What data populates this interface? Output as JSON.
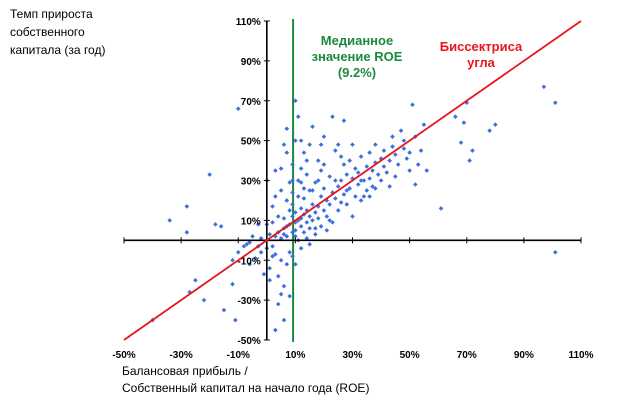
{
  "chart_data": {
    "type": "scatter",
    "ylabel_lines": [
      "Темп прироста",
      "собственного",
      "капитала (за год)"
    ],
    "xlabel_lines": [
      "Балансовая прибыль /",
      "Собственный капитал на начало года (ROE)"
    ],
    "xlim": [
      -50,
      110
    ],
    "ylim": [
      -50,
      110
    ],
    "x_ticks": [
      "-50%",
      "-30%",
      "-10%",
      "10%",
      "30%",
      "50%",
      "70%",
      "90%",
      "110%"
    ],
    "y_ticks": [
      "110%",
      "90%",
      "70%",
      "50%",
      "30%",
      "10%",
      "-10%",
      "-30%",
      "-50%"
    ],
    "x_tick_values": [
      -50,
      -30,
      -10,
      10,
      30,
      50,
      70,
      90,
      110
    ],
    "y_tick_values": [
      110,
      90,
      70,
      50,
      30,
      10,
      -10,
      -30,
      -50
    ],
    "grid": false,
    "median_roe": 9.2,
    "median_label_lines": [
      "Медианное",
      "значение ROE",
      "(9.2%)"
    ],
    "bisector_label_lines": [
      "Биссектриса",
      "угла"
    ],
    "colors": {
      "points": "#3f6ee0",
      "bisector": "#e8161b",
      "median": "#1a8a3c",
      "axes": "#000000"
    },
    "series": [
      {
        "values": [
          [
            -40,
            -40
          ],
          [
            -34,
            10
          ],
          [
            -28,
            4
          ],
          [
            -28,
            17
          ],
          [
            -27,
            -26
          ],
          [
            -25,
            -20
          ],
          [
            -22,
            -30
          ],
          [
            -20,
            33
          ],
          [
            -16,
            7
          ],
          [
            -15,
            -35
          ],
          [
            -12,
            -22
          ],
          [
            -11,
            -40
          ],
          [
            -10,
            -6
          ],
          [
            -10,
            66
          ],
          [
            -8,
            -3
          ],
          [
            -6,
            -1
          ],
          [
            -5,
            2
          ],
          [
            -4,
            -9
          ],
          [
            -3,
            -3
          ],
          [
            -2,
            1
          ],
          [
            -1,
            -17
          ],
          [
            0,
            -4
          ],
          [
            1,
            -14
          ],
          [
            1,
            3
          ],
          [
            2,
            17
          ],
          [
            2,
            -3
          ],
          [
            3,
            -7
          ],
          [
            3,
            2
          ],
          [
            3,
            -45
          ],
          [
            4,
            4
          ],
          [
            4,
            -18
          ],
          [
            5,
            1
          ],
          [
            5,
            36
          ],
          [
            5,
            -27
          ],
          [
            6,
            11
          ],
          [
            6,
            3
          ],
          [
            6,
            6
          ],
          [
            6,
            -23
          ],
          [
            7,
            44
          ],
          [
            7,
            -12
          ],
          [
            7,
            2
          ],
          [
            7,
            7
          ],
          [
            8,
            15
          ],
          [
            8,
            -6
          ],
          [
            8,
            8
          ],
          [
            8,
            -28
          ],
          [
            9,
            4
          ],
          [
            9,
            12
          ],
          [
            9,
            24
          ],
          [
            9,
            18
          ],
          [
            9,
            -8
          ],
          [
            9,
            38
          ],
          [
            10,
            9
          ],
          [
            10,
            2
          ],
          [
            10,
            50
          ],
          [
            10,
            5
          ],
          [
            10,
            14
          ],
          [
            11,
            10
          ],
          [
            11,
            22
          ],
          [
            11,
            0
          ],
          [
            11,
            62
          ],
          [
            12,
            11
          ],
          [
            12,
            29
          ],
          [
            12,
            7
          ],
          [
            12,
            16
          ],
          [
            12,
            36
          ],
          [
            13,
            13
          ],
          [
            13,
            44
          ],
          [
            13,
            4
          ],
          [
            13,
            21
          ],
          [
            14,
            9
          ],
          [
            14,
            15
          ],
          [
            14,
            33
          ],
          [
            14,
            1
          ],
          [
            15,
            12
          ],
          [
            15,
            25
          ],
          [
            15,
            48
          ],
          [
            15,
            6
          ],
          [
            16,
            18
          ],
          [
            16,
            10
          ],
          [
            16,
            57
          ],
          [
            17,
            14
          ],
          [
            17,
            29
          ],
          [
            17,
            3
          ],
          [
            18,
            17
          ],
          [
            18,
            40
          ],
          [
            18,
            11
          ],
          [
            19,
            22
          ],
          [
            19,
            7
          ],
          [
            19,
            35
          ],
          [
            20,
            15
          ],
          [
            20,
            26
          ],
          [
            20,
            52
          ],
          [
            21,
            20
          ],
          [
            21,
            12
          ],
          [
            22,
            18
          ],
          [
            22,
            32
          ],
          [
            23,
            24
          ],
          [
            23,
            9
          ],
          [
            24,
            21
          ],
          [
            24,
            45
          ],
          [
            25,
            27
          ],
          [
            25,
            15
          ],
          [
            26,
            30
          ],
          [
            26,
            19
          ],
          [
            27,
            23
          ],
          [
            27,
            60
          ],
          [
            28,
            33
          ],
          [
            28,
            18
          ],
          [
            29,
            26
          ],
          [
            29,
            40
          ],
          [
            30,
            31
          ],
          [
            30,
            12
          ],
          [
            31,
            36
          ],
          [
            31,
            22
          ],
          [
            32,
            34
          ],
          [
            32,
            28
          ],
          [
            33,
            20
          ],
          [
            33,
            42
          ],
          [
            34,
            30
          ],
          [
            35,
            37
          ],
          [
            35,
            25
          ],
          [
            36,
            44
          ],
          [
            36,
            31
          ],
          [
            37,
            35
          ],
          [
            37,
            27
          ],
          [
            38,
            48
          ],
          [
            38,
            39
          ],
          [
            39,
            33
          ],
          [
            40,
            41
          ],
          [
            40,
            30
          ],
          [
            41,
            45
          ],
          [
            41,
            37
          ],
          [
            42,
            34
          ],
          [
            43,
            40
          ],
          [
            44,
            47
          ],
          [
            44,
            52
          ],
          [
            45,
            43
          ],
          [
            46,
            38
          ],
          [
            47,
            55
          ],
          [
            48,
            46
          ],
          [
            48,
            50
          ],
          [
            49,
            41
          ],
          [
            50,
            44
          ],
          [
            51,
            68
          ],
          [
            52,
            52
          ],
          [
            53,
            38
          ],
          [
            54,
            45
          ],
          [
            55,
            58
          ],
          [
            56,
            35
          ],
          [
            61,
            16
          ],
          [
            66,
            62
          ],
          [
            68,
            49
          ],
          [
            69,
            59
          ],
          [
            70,
            69
          ],
          [
            71,
            40
          ],
          [
            72,
            45
          ],
          [
            78,
            55
          ],
          [
            80,
            58
          ],
          [
            97,
            77
          ],
          [
            101,
            69
          ],
          [
            101,
            -6
          ],
          [
            5,
            25
          ],
          [
            8,
            29
          ],
          [
            4,
            12
          ],
          [
            2,
            9
          ],
          [
            14,
            40
          ],
          [
            19,
            48
          ],
          [
            23,
            62
          ],
          [
            27,
            38
          ],
          [
            34,
            22
          ],
          [
            15,
            -2
          ],
          [
            21,
            5
          ],
          [
            10,
            -12
          ],
          [
            12,
            -4
          ],
          [
            -12,
            -10
          ],
          [
            -6,
            -12
          ],
          [
            0,
            8
          ],
          [
            3,
            22
          ],
          [
            6,
            48
          ],
          [
            11,
            30
          ],
          [
            16,
            25
          ],
          [
            25,
            48
          ],
          [
            30,
            48
          ],
          [
            36,
            22
          ],
          [
            43,
            27
          ],
          [
            52,
            28
          ],
          [
            18,
            30
          ],
          [
            9,
            30
          ],
          [
            7,
            20
          ],
          [
            5,
            -10
          ],
          [
            2,
            -8
          ],
          [
            -2,
            -6
          ],
          [
            -7,
            -2
          ],
          [
            -18,
            8
          ],
          [
            -3,
            8
          ],
          [
            1,
            -20
          ],
          [
            4,
            -32
          ],
          [
            6,
            -40
          ],
          [
            13,
            26
          ],
          [
            17,
            6
          ],
          [
            22,
            10
          ],
          [
            24,
            30
          ],
          [
            28,
            25
          ],
          [
            33,
            30
          ],
          [
            38,
            26
          ],
          [
            45,
            32
          ],
          [
            50,
            35
          ],
          [
            10,
            70
          ],
          [
            7,
            56
          ],
          [
            3,
            35
          ],
          [
            0,
            30
          ],
          [
            12,
            50
          ],
          [
            20,
            38
          ],
          [
            26,
            42
          ]
        ]
      }
    ]
  }
}
